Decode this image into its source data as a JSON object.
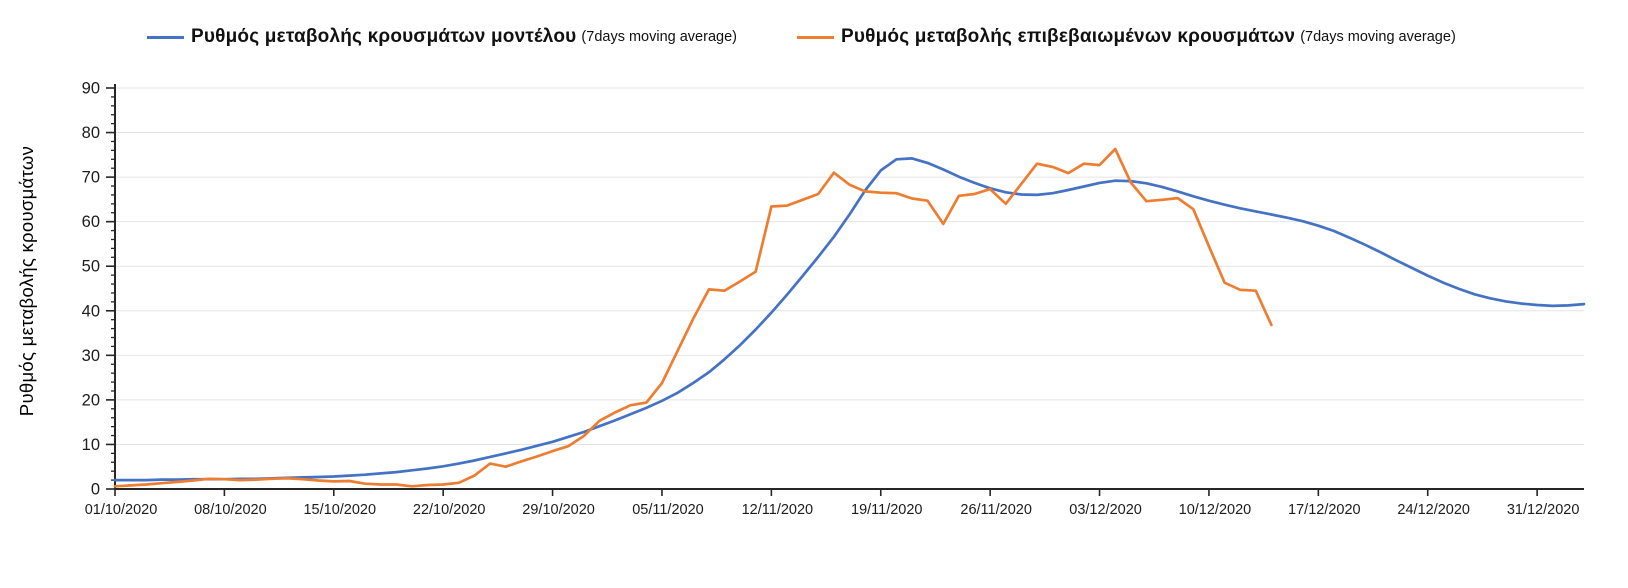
{
  "page": {
    "background": "#ffffff"
  },
  "legend": {
    "items": [
      {
        "id": "model",
        "label": "Ρυθμός μεταβολής κρουσμάτων μοντέλου",
        "suffix": "(7days moving average)",
        "color": "#4472C4"
      },
      {
        "id": "confirmed",
        "label": "Ρυθμός μεταβολής επιβεβαιωμένων κρουσμάτων",
        "suffix": "(7days moving average)",
        "color": "#ED7D31"
      }
    ]
  },
  "chart_data": {
    "type": "line",
    "title": "",
    "xlabel": "",
    "ylabel": "Ρυθμός μεταβολής κρουσμάτων",
    "ylim": [
      0,
      90
    ],
    "y_major_step": 10,
    "y_minor_step": 2,
    "grid": "horizontal-only",
    "legend_position": "top",
    "axis_color": "#262626",
    "grid_color": "#e4e4e4",
    "tick_label_color": "#1c1c1c",
    "x_start_date": "01/10/2020",
    "x_axis_span_days": 94,
    "x_ticks": [
      {
        "day": 0,
        "label": "01/10/2020"
      },
      {
        "day": 7,
        "label": "08/10/2020"
      },
      {
        "day": 14,
        "label": "15/10/2020"
      },
      {
        "day": 21,
        "label": "22/10/2020"
      },
      {
        "day": 28,
        "label": "29/10/2020"
      },
      {
        "day": 35,
        "label": "05/11/2020"
      },
      {
        "day": 42,
        "label": "12/11/2020"
      },
      {
        "day": 49,
        "label": "19/11/2020"
      },
      {
        "day": 56,
        "label": "26/11/2020"
      },
      {
        "day": 63,
        "label": "03/12/2020"
      },
      {
        "day": 70,
        "label": "10/12/2020"
      },
      {
        "day": 77,
        "label": "17/12/2020"
      },
      {
        "day": 84,
        "label": "24/12/2020"
      },
      {
        "day": 91,
        "label": "31/12/2020"
      }
    ],
    "series": [
      {
        "name": "Ρυθμός μεταβολής κρουσμάτων μοντέλου (7days moving average)",
        "color": "#4472C4",
        "start_day": 0,
        "values": [
          2.0,
          2.0,
          2.0,
          2.1,
          2.1,
          2.2,
          2.2,
          2.2,
          2.3,
          2.3,
          2.4,
          2.5,
          2.6,
          2.7,
          2.8,
          3.0,
          3.2,
          3.5,
          3.8,
          4.2,
          4.6,
          5.1,
          5.7,
          6.4,
          7.2,
          8.0,
          8.8,
          9.7,
          10.6,
          11.7,
          12.8,
          14.1,
          15.4,
          16.8,
          18.2,
          19.8,
          21.6,
          23.8,
          26.2,
          29.1,
          32.3,
          35.8,
          39.6,
          43.6,
          47.8,
          52.1,
          56.6,
          61.6,
          67.0,
          71.5,
          74.0,
          74.2,
          73.2,
          71.7,
          70.1,
          68.7,
          67.5,
          66.6,
          66.1,
          66.0,
          66.4,
          67.1,
          67.9,
          68.7,
          69.2,
          69.1,
          68.6,
          67.8,
          66.8,
          65.7,
          64.7,
          63.8,
          63.0,
          62.3,
          61.6,
          60.9,
          60.1,
          59.1,
          57.9,
          56.4,
          54.8,
          53.1,
          51.3,
          49.6,
          47.9,
          46.3,
          44.9,
          43.7,
          42.8,
          42.1,
          41.6,
          41.3,
          41.1,
          41.2,
          41.5
        ]
      },
      {
        "name": "Ρυθμός μεταβολής επιβεβαιωμένων κρουσμάτων (7days moving average)",
        "color": "#ED7D31",
        "start_day": 0,
        "values": [
          0.6,
          0.8,
          1.0,
          1.3,
          1.6,
          1.9,
          2.3,
          2.2,
          2.0,
          2.1,
          2.3,
          2.4,
          2.2,
          1.9,
          1.7,
          1.8,
          1.2,
          1.0,
          1.0,
          0.6,
          0.9,
          1.0,
          1.4,
          3.0,
          5.7,
          5.0,
          6.2,
          7.3,
          8.5,
          9.6,
          11.9,
          15.3,
          17.2,
          18.8,
          19.4,
          23.8,
          31.0,
          38.2,
          44.8,
          44.5,
          46.6,
          48.8,
          63.4,
          63.6,
          64.9,
          66.2,
          71.0,
          68.3,
          66.8,
          66.5,
          66.4,
          65.2,
          64.7,
          59.5,
          65.8,
          66.2,
          67.3,
          64.0,
          68.5,
          73.0,
          72.3,
          70.9,
          73.0,
          72.7,
          76.3,
          68.8,
          64.6,
          64.9,
          65.3,
          62.8,
          54.5,
          46.3,
          44.7,
          44.5,
          36.8
        ]
      }
    ]
  }
}
